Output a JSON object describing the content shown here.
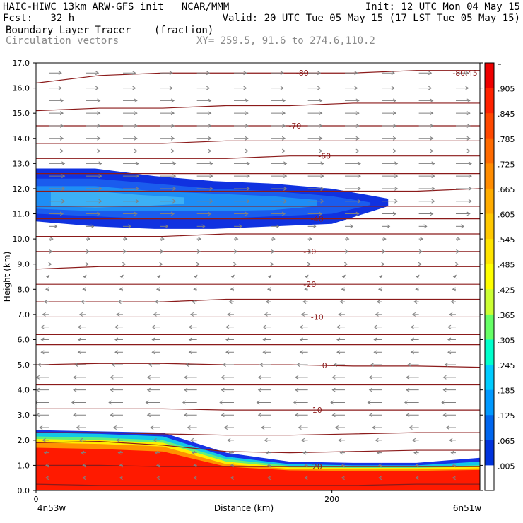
{
  "header": {
    "line1_left": "HAIC-HIWC 13km ARW-GFS init   NCAR/MMM",
    "line1_right": "Init: 12 UTC Mon 04 May 15",
    "line2_left": "Fcst:   32 h",
    "line2_right": "Valid: 20 UTC Tue 05 May 15 (17 LST Tue 05 May 15)",
    "line3_left": "Boundary Layer Tracer",
    "line3_mid": "(fraction)",
    "line4_left": "Circulation vectors",
    "line4_mid": "XY= 259.5, 91.6 to 274.6,110.2"
  },
  "chart_data": {
    "type": "heatmap",
    "title": "Boundary Layer Tracer",
    "units": "(fraction)",
    "xlabel": "Distance (km)",
    "ylabel": "Height (km)",
    "xlim": [
      0,
      300
    ],
    "ylim": [
      0,
      17
    ],
    "y_ticks": [
      "0.0",
      "1.0",
      "2.0",
      "3.0",
      "4.0",
      "5.0",
      "6.0",
      "7.0",
      "8.0",
      "9.0",
      "10.0",
      "11.0",
      "12.0",
      "13.0",
      "14.0",
      "15.0",
      "16.0",
      "17.0"
    ],
    "x_ticks": [
      {
        "value": 0,
        "label": "0"
      },
      {
        "value": 200,
        "label": "200"
      }
    ],
    "x_end_labels": {
      "left": "4n53w",
      "right": "6n51w"
    },
    "colorbar": {
      "labels": [
        "–",
        ".905",
        ".845",
        ".785",
        ".725",
        ".665",
        ".605",
        ".545",
        ".485",
        ".425",
        ".365",
        ".305",
        ".245",
        ".185",
        ".125",
        ".065",
        ".005"
      ],
      "colors": [
        "#ee0000",
        "#ff2200",
        "#ff4800",
        "#ff6a00",
        "#ff8c00",
        "#ffac00",
        "#ffc800",
        "#ffe400",
        "#ffff00",
        "#ccff33",
        "#66ff66",
        "#00ffcc",
        "#00ccff",
        "#0099ff",
        "#0066ee",
        "#0033dd",
        "#ffffff"
      ]
    },
    "isotherms": [
      {
        "label": "-80",
        "label_x": 180,
        "heights": [
          16.2,
          16.5,
          16.6,
          16.6,
          16.6,
          16.6,
          16.7,
          16.7
        ]
      },
      {
        "label": "-80.45",
        "label_x": 290,
        "heights": []
      },
      {
        "label": "",
        "label_x": 0,
        "heights": [
          15.1,
          15.2,
          15.2,
          15.3,
          15.3,
          15.4,
          15.4,
          15.4
        ]
      },
      {
        "label": "-70",
        "label_x": 175,
        "heights": [
          14.5,
          14.5,
          14.5,
          14.5,
          14.5,
          14.5,
          14.5,
          14.5
        ]
      },
      {
        "label": "",
        "label_x": 0,
        "heights": [
          13.8,
          13.8,
          13.8,
          13.9,
          13.9,
          13.9,
          13.9,
          13.9
        ]
      },
      {
        "label": "-60",
        "label_x": 195,
        "heights": [
          13.2,
          13.2,
          13.2,
          13.2,
          13.3,
          13.3,
          13.3,
          13.3
        ]
      },
      {
        "label": "",
        "label_x": 0,
        "heights": [
          12.6,
          12.6,
          12.6,
          12.6,
          12.6,
          12.6,
          12.6,
          12.6
        ]
      },
      {
        "label": "",
        "label_x": 0,
        "heights": [
          11.9,
          11.9,
          11.9,
          11.9,
          11.9,
          11.9,
          11.9,
          12.0
        ]
      },
      {
        "label": "",
        "label_x": 0,
        "heights": [
          11.3,
          11.3,
          11.3,
          11.3,
          11.3,
          11.3,
          11.3,
          11.3
        ]
      },
      {
        "label": "-40",
        "label_x": 190,
        "heights": [
          10.8,
          10.8,
          10.8,
          10.8,
          10.8,
          10.8,
          10.8,
          10.8
        ]
      },
      {
        "label": "",
        "label_x": 0,
        "heights": [
          10.1,
          10.1,
          10.1,
          10.2,
          10.2,
          10.2,
          10.2,
          10.2
        ]
      },
      {
        "label": "-30",
        "label_x": 185,
        "heights": [
          9.5,
          9.5,
          9.5,
          9.5,
          9.5,
          9.5,
          9.5,
          9.5
        ]
      },
      {
        "label": "",
        "label_x": 0,
        "heights": [
          8.8,
          8.9,
          8.9,
          8.9,
          8.9,
          8.9,
          8.9,
          8.9
        ]
      },
      {
        "label": "-20",
        "label_x": 185,
        "heights": [
          8.2,
          8.2,
          8.2,
          8.2,
          8.2,
          8.2,
          8.2,
          8.2
        ]
      },
      {
        "label": "",
        "label_x": 0,
        "heights": [
          7.5,
          7.5,
          7.5,
          7.6,
          7.6,
          7.6,
          7.6,
          7.6
        ]
      },
      {
        "label": "-10",
        "label_x": 190,
        "heights": [
          6.9,
          6.9,
          6.9,
          6.9,
          6.9,
          6.9,
          6.9,
          6.9
        ]
      },
      {
        "label": "",
        "label_x": 0,
        "heights": [
          6.2,
          6.2,
          6.2,
          6.2,
          6.2,
          6.2,
          6.2,
          6.2
        ]
      },
      {
        "label": "",
        "label_x": 0,
        "heights": [
          5.8,
          5.8,
          5.8,
          5.8,
          5.8,
          5.8,
          5.8,
          5.8
        ]
      },
      {
        "label": "0",
        "label_x": 195,
        "heights": [
          5.0,
          5.05,
          5.05,
          5.0,
          5.0,
          4.95,
          4.95,
          4.9
        ]
      },
      {
        "label": "",
        "label_x": 0,
        "heights": [
          4.2,
          4.2,
          4.2,
          4.2,
          4.2,
          4.2,
          4.2,
          4.2
        ]
      },
      {
        "label": "10",
        "label_x": 190,
        "heights": [
          3.25,
          3.25,
          3.25,
          3.2,
          3.2,
          3.2,
          3.2,
          3.2
        ]
      },
      {
        "label": "",
        "label_x": 0,
        "heights": [
          2.3,
          2.3,
          2.25,
          2.2,
          2.2,
          2.25,
          2.3,
          2.3
        ]
      },
      {
        "label": "",
        "label_x": 0,
        "heights": [
          1.9,
          1.95,
          1.8,
          1.55,
          1.5,
          1.55,
          1.6,
          1.6
        ]
      },
      {
        "label": "20",
        "label_x": 190,
        "heights": [
          1.0,
          1.0,
          0.95,
          0.95,
          0.95,
          0.95,
          0.95,
          0.95
        ]
      },
      {
        "label": "",
        "label_x": 0,
        "heights": [
          0.25,
          0.2,
          0.2,
          0.2,
          0.2,
          0.2,
          0.25,
          0.25
        ]
      }
    ],
    "layers": [
      {
        "level": 0.005,
        "top": [
          2.4,
          2.35,
          2.3,
          1.5,
          1.15,
          1.1,
          1.1,
          1.3
        ],
        "bottom": [
          0,
          0,
          0,
          0,
          0,
          0,
          0,
          0
        ]
      },
      {
        "level": 0.125,
        "top": [
          2.3,
          2.25,
          2.15,
          1.35,
          1.05,
          1.0,
          1.0,
          1.15
        ],
        "bottom": [
          0,
          0,
          0,
          0,
          0,
          0,
          0,
          0
        ]
      },
      {
        "level": 0.305,
        "top": [
          2.15,
          2.1,
          2.0,
          1.25,
          0.98,
          0.95,
          0.95,
          1.0
        ],
        "bottom": [
          0,
          0,
          0,
          0,
          0,
          0,
          0,
          0
        ]
      },
      {
        "level": 0.485,
        "top": [
          2.05,
          2.0,
          1.9,
          1.15,
          0.92,
          0.9,
          0.9,
          0.95
        ],
        "bottom": [
          0,
          0,
          0,
          0,
          0,
          0,
          0,
          0
        ]
      },
      {
        "level": 0.665,
        "top": [
          1.9,
          1.85,
          1.75,
          1.05,
          0.86,
          0.84,
          0.84,
          0.88
        ],
        "bottom": [
          0,
          0,
          0,
          0,
          0,
          0,
          0,
          0
        ]
      },
      {
        "level": 0.845,
        "top": [
          1.7,
          1.65,
          1.55,
          0.95,
          0.8,
          0.78,
          0.78,
          0.82
        ],
        "bottom": [
          0,
          0,
          0,
          0,
          0,
          0,
          0,
          0
        ]
      }
    ],
    "upper_plume": {
      "levels": [
        {
          "level": 0.005,
          "top": [
            12.8,
            12.8,
            12.5,
            12.3,
            12.2,
            12.0,
            11.6
          ],
          "bottom": [
            10.7,
            10.5,
            10.4,
            10.4,
            10.5,
            10.6,
            11.3
          ],
          "x": [
            0,
            40,
            80,
            120,
            160,
            200,
            238
          ]
        },
        {
          "level": 0.065,
          "top": [
            12.4,
            12.4,
            12.2,
            12.0,
            11.9,
            11.7,
            11.45
          ],
          "bottom": [
            11.0,
            10.9,
            10.8,
            10.8,
            10.9,
            11.0,
            11.35
          ],
          "x": [
            0,
            40,
            80,
            120,
            160,
            200,
            226
          ]
        },
        {
          "level": 0.125,
          "top": [
            12.1,
            12.1,
            11.9,
            11.8,
            11.7,
            11.55
          ],
          "bottom": [
            11.2,
            11.1,
            11.1,
            11.1,
            11.15,
            11.3
          ],
          "x": [
            0,
            40,
            80,
            120,
            160,
            190
          ]
        },
        {
          "level": 0.185,
          "top": [
            11.9,
            11.9,
            11.75,
            11.65
          ],
          "bottom": [
            11.3,
            11.25,
            11.3,
            11.4
          ],
          "x": [
            10,
            40,
            70,
            100
          ]
        }
      ]
    },
    "wind_vectors": {
      "rows": [
        {
          "height": 16.6,
          "u": 0.8,
          "w": 0.0
        },
        {
          "height": 16.0,
          "u": 0.8,
          "w": 0.0
        },
        {
          "height": 15.5,
          "u": 0.9,
          "w": 0.0
        },
        {
          "height": 15.0,
          "u": 0.9,
          "w": 0.0
        },
        {
          "height": 14.5,
          "u": 0.9,
          "w": 0.0
        },
        {
          "height": 14.0,
          "u": 0.9,
          "w": 0.0
        },
        {
          "height": 13.5,
          "u": 0.9,
          "w": 0.0
        },
        {
          "height": 13.0,
          "u": 1.0,
          "w": 0.0
        },
        {
          "height": 12.5,
          "u": 1.0,
          "w": 0.0
        },
        {
          "height": 12.0,
          "u": 1.0,
          "w": 0.0
        },
        {
          "height": 11.5,
          "u": 1.0,
          "w": 0.0
        },
        {
          "height": 11.0,
          "u": 0.9,
          "w": 0.0
        },
        {
          "height": 10.5,
          "u": 0.5,
          "w": 0.0
        },
        {
          "height": 10.0,
          "u": 0.25,
          "w": 0.0
        },
        {
          "height": 9.5,
          "u": 0.2,
          "w": 0.0
        },
        {
          "height": 9.0,
          "u": 0.15,
          "w": 0.0
        },
        {
          "height": 8.5,
          "u": -0.15,
          "w": 0.0
        },
        {
          "height": 8.0,
          "u": -0.2,
          "w": 0.0
        },
        {
          "height": 7.5,
          "u": -0.3,
          "w": 0.0
        },
        {
          "height": 7.0,
          "u": -0.4,
          "w": 0.0
        },
        {
          "height": 6.5,
          "u": -0.5,
          "w": 0.0
        },
        {
          "height": 6.0,
          "u": -0.5,
          "w": 0.0
        },
        {
          "height": 5.5,
          "u": -0.5,
          "w": 0.0
        },
        {
          "height": 5.0,
          "u": -0.7,
          "w": 0.0
        },
        {
          "height": 4.5,
          "u": -0.8,
          "w": 0.0
        },
        {
          "height": 4.0,
          "u": -0.8,
          "w": 0.0
        },
        {
          "height": 3.5,
          "u": -0.9,
          "w": 0.0
        },
        {
          "height": 3.0,
          "u": -0.8,
          "w": 0.0
        },
        {
          "height": 2.5,
          "u": -0.6,
          "w": 0.0
        },
        {
          "height": 2.0,
          "u": -0.4,
          "w": 0.0
        },
        {
          "height": 1.5,
          "u": -0.3,
          "w": 0.0
        },
        {
          "height": 1.0,
          "u": -0.2,
          "w": 0.0
        },
        {
          "height": 0.5,
          "u": -0.2,
          "w": 0.0
        }
      ],
      "columns": 12
    }
  }
}
